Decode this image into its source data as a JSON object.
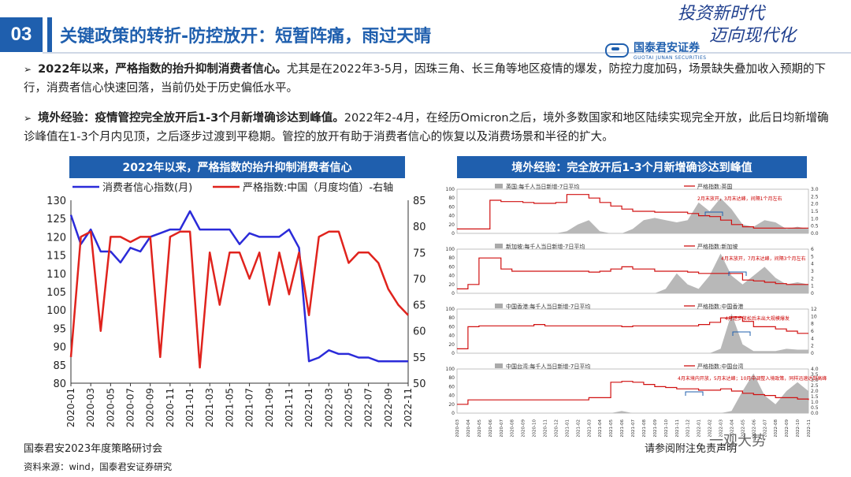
{
  "header": {
    "section_number": "03",
    "title": "关键政策的转折-防控放开：短暂阵痛，雨过天晴",
    "logo_cn": "国泰君安证券",
    "logo_en": "GUOTAI JUNAN SECURITIES",
    "slogan_line1": "投资新时代",
    "slogan_line2": "迈向现代化"
  },
  "bullets": [
    {
      "bold": "2022年以来，严格指数的抬升抑制消费者信心。",
      "text": "尤其是在2022年3-5月，因珠三角、长三角等地区疫情的爆发，防控力度加码，场景缺失叠加收入预期的下行，消费者信心快速回落，当前仍处于历史偏低水平。"
    },
    {
      "bold": "境外经验：疫情管控完全放开后1-3个月新增确诊达到峰值。",
      "text": "2022年2-4月，在经历Omicron之后，境外多数国家和地区陆续实现完全开放，此后日均新增确诊峰值在1-3个月内见顶，之后逐步过渡到平稳期。管控的放开有助于消费者信心的恢复以及消费场景和半径的扩大。"
    }
  ],
  "left_chart": {
    "header": "2022年以来，严格指数的抬升抑制消费者信心",
    "colors": {
      "consumer": "#2b2bd9",
      "stringency": "#e0231d"
    }
  },
  "right_chart": {
    "header": "境外经验：完全放开后1-3个月新增确诊达到峰值",
    "panels": [
      {
        "legend_cases": "英国:每千人当日新增-7日平均",
        "legend_idx": "严格指数:英国",
        "note": "2月末放开，3月末达峰，间隔1个月左右",
        "y_left": [
          "100",
          "80",
          "60",
          "40",
          "20",
          "0"
        ],
        "y_right": [
          "3.0",
          "2.5",
          "2.0",
          "1.5",
          "1.0",
          "0.5",
          "0.0"
        ]
      },
      {
        "legend_cases": "新加坡:每千人当日新增-7日平均",
        "legend_idx": "严格指数:新加坡",
        "note": "4月末放开，7月末达峰，间隔3个月左右",
        "y_left": [
          "100",
          "80",
          "60",
          "40",
          "20",
          "0"
        ],
        "y_right": [
          "6",
          "5",
          "4",
          "3",
          "2",
          "1",
          "0"
        ]
      },
      {
        "legend_cases": "中国香港:每千人当日新增-7日平均",
        "legend_idx": "严格指数:中国香港",
        "note": "4月逐步放松后未出大规模爆发",
        "y_left": [
          "100",
          "80",
          "60",
          "40",
          "20",
          "0"
        ],
        "y_right": [
          "12",
          "10",
          "8",
          "6",
          "4",
          "2",
          "0"
        ]
      },
      {
        "legend_cases": "中国台湾:每千人当日新增-7日平均",
        "legend_idx": "严格指数:中国台湾",
        "note": "4月末境内开放，5月末达峰；10月中调整入境政策，同样迅速达到高峰",
        "y_left": [
          "100",
          "80",
          "60",
          "40",
          "20",
          "0"
        ],
        "y_right": [
          "4.0",
          "3.5",
          "3.0",
          "2.5",
          "2.0",
          "1.5",
          "1.0",
          "0.5",
          "0.0"
        ]
      }
    ],
    "x_ticks": [
      "2020-03",
      "2020-04",
      "2020-05",
      "2020-06",
      "2020-07",
      "2020-08",
      "2020-09",
      "2020-10",
      "2020-11",
      "2020-12",
      "2021-01",
      "2021-02",
      "2021-03",
      "2021-04",
      "2021-05",
      "2021-06",
      "2021-07",
      "2021-08",
      "2021-09",
      "2021-10",
      "2021-11",
      "2021-12",
      "2022-01",
      "2022-02",
      "2022-03",
      "2022-04",
      "2022-05",
      "2022-06",
      "2022-07",
      "2022-08",
      "2022-09",
      "2022-10",
      "2022-11"
    ]
  },
  "footer": {
    "left": "国泰君安2023年度策略研讨会",
    "source": "资料来源：wind，国泰君安证券研究",
    "right": "请参阅附注免责声明",
    "watermark": "一观大势"
  },
  "chart_data": {
    "type": "line",
    "title": "2022年以来，严格指数的抬升抑制消费者信心",
    "x": [
      "2020-01",
      "2020-02",
      "2020-03",
      "2020-04",
      "2020-05",
      "2020-06",
      "2020-07",
      "2020-08",
      "2020-09",
      "2020-10",
      "2020-11",
      "2020-12",
      "2021-01",
      "2021-02",
      "2021-03",
      "2021-04",
      "2021-05",
      "2021-06",
      "2021-07",
      "2021-08",
      "2021-09",
      "2021-10",
      "2021-11",
      "2021-12",
      "2022-01",
      "2022-02",
      "2022-03",
      "2022-04",
      "2022-05",
      "2022-06",
      "2022-07",
      "2022-08",
      "2022-09",
      "2022-10",
      "2022-11"
    ],
    "x_tick_labels": [
      "2020-01",
      "2020-03",
      "2020-05",
      "2020-07",
      "2020-09",
      "2020-11",
      "2021-01",
      "2021-03",
      "2021-05",
      "2021-07",
      "2021-09",
      "2021-11",
      "2022-01",
      "2022-03",
      "2022-05",
      "2022-07",
      "2022-09",
      "2022-11"
    ],
    "series": [
      {
        "name": "消费者信心指数(月)",
        "axis": "left",
        "values": [
          126,
          118,
          122,
          116,
          116,
          113,
          117,
          116,
          120,
          121,
          122,
          122,
          127,
          122,
          122,
          122,
          122,
          118,
          121,
          120,
          120,
          120,
          122,
          117,
          86,
          87,
          89,
          88,
          88,
          87,
          87,
          86,
          86,
          86,
          86
        ]
      },
      {
        "name": "严格指数:中国（月度均值）-右轴",
        "axis": "right",
        "values": [
          55,
          78,
          79,
          60,
          78,
          78,
          77,
          78,
          78,
          55,
          78,
          79,
          79,
          53,
          75,
          65,
          75,
          75,
          70,
          75,
          65,
          75,
          67,
          75,
          63,
          78,
          79,
          79,
          73,
          75,
          75,
          73,
          68,
          65,
          63
        ]
      }
    ],
    "y_left": {
      "range": [
        80,
        130
      ],
      "ticks": [
        80,
        85,
        90,
        95,
        100,
        105,
        110,
        115,
        120,
        125,
        130
      ]
    },
    "y_right": {
      "range": [
        50,
        85
      ],
      "ticks": [
        50,
        55,
        60,
        65,
        70,
        75,
        80,
        85
      ]
    }
  }
}
